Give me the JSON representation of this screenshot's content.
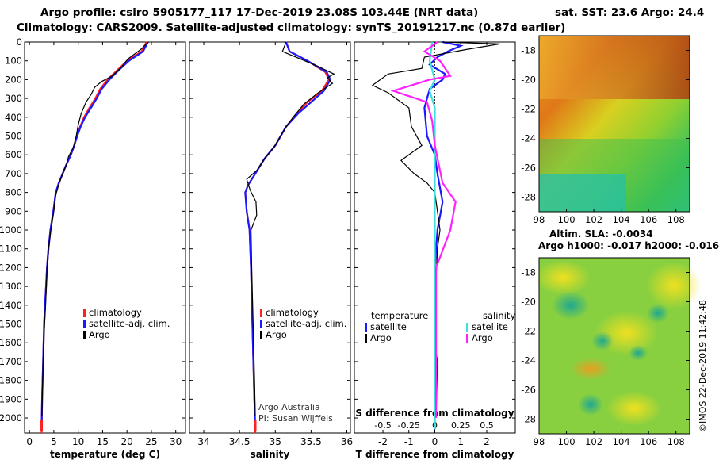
{
  "titles": {
    "line1": "Argo profile: csiro 5905177_117 17-Dec-2019 23.08S 103.44E (NRT data)",
    "line2": "Climatology: CARS2009. Satellite-adjusted climatology: synTS_20191217.nc (0.87d earlier)",
    "sst": "sat. SST: 23.6 Argo: 24.4",
    "sla1": "Altim. SLA: -0.0034",
    "sla2": "Argo h1000: -0.017 h2000: -0.016",
    "imos": "©IMOS 22-Dec-2019 11:42:48"
  },
  "colors": {
    "climatology": "#ff2020",
    "satellite": "#1a1aff",
    "argo": "#000000",
    "sat_sal": "#40e0e0",
    "argo_sal": "#ff20ff"
  },
  "depth_axis": {
    "ticks": [
      0,
      100,
      200,
      300,
      400,
      500,
      600,
      700,
      800,
      900,
      1000,
      1100,
      1200,
      1300,
      1400,
      1500,
      1600,
      1700,
      1800,
      1900,
      2000
    ],
    "range": [
      0,
      2080
    ]
  },
  "chart_data": [
    {
      "type": "line",
      "name": "temperature",
      "xlabel": "temperature (deg C)",
      "xlim": [
        -1,
        32
      ],
      "xticks": [
        0,
        5,
        10,
        15,
        20,
        25,
        30
      ],
      "legend": [
        {
          "label": "climatology",
          "color": "#ff2020"
        },
        {
          "label": "satellite-adj. clim.",
          "color": "#1a1aff"
        },
        {
          "label": "Argo",
          "color": "#000000"
        }
      ],
      "series": [
        {
          "name": "climatology",
          "color": "#ff2020",
          "points": [
            [
              24,
              0
            ],
            [
              23,
              50
            ],
            [
              20,
              100
            ],
            [
              18,
              150
            ],
            [
              16,
              200
            ],
            [
              14.5,
              250
            ],
            [
              13.5,
              300
            ],
            [
              12.3,
              350
            ],
            [
              11.2,
              400
            ],
            [
              10.4,
              450
            ],
            [
              9.7,
              500
            ],
            [
              9.2,
              550
            ],
            [
              8.5,
              600
            ],
            [
              7.6,
              650
            ],
            [
              6.8,
              700
            ],
            [
              6.0,
              750
            ],
            [
              5.4,
              800
            ],
            [
              4.9,
              900
            ],
            [
              4.3,
              1000
            ],
            [
              3.9,
              1100
            ],
            [
              3.6,
              1200
            ],
            [
              3.4,
              1300
            ],
            [
              3.2,
              1400
            ],
            [
              3.0,
              1500
            ],
            [
              2.8,
              1700
            ],
            [
              2.6,
              1900
            ],
            [
              2.5,
              2080
            ]
          ]
        },
        {
          "name": "satellite-adj. clim.",
          "color": "#1a1aff",
          "points": [
            [
              24.3,
              0
            ],
            [
              23.3,
              50
            ],
            [
              20.4,
              100
            ],
            [
              18.3,
              150
            ],
            [
              16.4,
              200
            ],
            [
              14.8,
              250
            ],
            [
              13.8,
              300
            ],
            [
              12.6,
              350
            ],
            [
              11.4,
              400
            ],
            [
              10.5,
              450
            ],
            [
              9.8,
              500
            ],
            [
              9.2,
              550
            ],
            [
              8.5,
              600
            ],
            [
              7.6,
              650
            ],
            [
              6.8,
              700
            ],
            [
              6.0,
              750
            ],
            [
              5.4,
              800
            ],
            [
              4.9,
              900
            ],
            [
              4.3,
              1000
            ],
            [
              3.9,
              1100
            ],
            [
              3.6,
              1200
            ],
            [
              3.4,
              1300
            ],
            [
              3.2,
              1400
            ],
            [
              3.0,
              1500
            ],
            [
              2.8,
              1700
            ],
            [
              2.6,
              1900
            ],
            [
              2.5,
              2060
            ]
          ]
        },
        {
          "name": "Argo",
          "color": "#000000",
          "points": [
            [
              24.4,
              0
            ],
            [
              22.8,
              40
            ],
            [
              20.2,
              90
            ],
            [
              19,
              130
            ],
            [
              17,
              180
            ],
            [
              14.8,
              210
            ],
            [
              13.4,
              240
            ],
            [
              12.6,
              280
            ],
            [
              11.6,
              320
            ],
            [
              10.6,
              380
            ],
            [
              10.0,
              440
            ],
            [
              9.6,
              500
            ],
            [
              9.0,
              560
            ],
            [
              8.0,
              610
            ],
            [
              7.6,
              650
            ],
            [
              6.8,
              700
            ],
            [
              6.0,
              760
            ],
            [
              5.3,
              820
            ],
            [
              5.0,
              900
            ],
            [
              4.4,
              1000
            ],
            [
              3.9,
              1100
            ],
            [
              3.6,
              1200
            ],
            [
              3.3,
              1400
            ],
            [
              2.9,
              1600
            ],
            [
              2.7,
              1800
            ],
            [
              2.55,
              1990
            ]
          ]
        }
      ]
    },
    {
      "type": "line",
      "name": "salinity",
      "xlabel": "salinity",
      "xlim": [
        33.8,
        36.05
      ],
      "xticks": [
        34,
        34.5,
        35,
        35.5,
        36
      ],
      "legend": [
        {
          "label": "climatology",
          "color": "#ff2020"
        },
        {
          "label": "satellite-adj. clim.",
          "color": "#1a1aff"
        },
        {
          "label": "Argo",
          "color": "#000000"
        }
      ],
      "series": [
        {
          "name": "climatology",
          "color": "#ff2020",
          "points": [
            [
              35.15,
              0
            ],
            [
              35.2,
              50
            ],
            [
              35.45,
              100
            ],
            [
              35.7,
              160
            ],
            [
              35.75,
              200
            ],
            [
              35.65,
              260
            ],
            [
              35.45,
              320
            ],
            [
              35.3,
              380
            ],
            [
              35.15,
              450
            ],
            [
              35.0,
              550
            ],
            [
              34.85,
              620
            ],
            [
              34.72,
              700
            ],
            [
              34.62,
              760
            ],
            [
              34.58,
              800
            ],
            [
              34.6,
              900
            ],
            [
              34.64,
              1000
            ],
            [
              34.66,
              1200
            ],
            [
              34.68,
              1500
            ],
            [
              34.7,
              1800
            ],
            [
              34.72,
              2080
            ]
          ]
        },
        {
          "name": "satellite-adj. clim.",
          "color": "#1a1aff",
          "points": [
            [
              35.15,
              0
            ],
            [
              35.2,
              50
            ],
            [
              35.45,
              100
            ],
            [
              35.72,
              160
            ],
            [
              35.77,
              200
            ],
            [
              35.68,
              260
            ],
            [
              35.5,
              320
            ],
            [
              35.32,
              380
            ],
            [
              35.15,
              450
            ],
            [
              35.0,
              550
            ],
            [
              34.85,
              620
            ],
            [
              34.72,
              700
            ],
            [
              34.62,
              760
            ],
            [
              34.58,
              800
            ],
            [
              34.6,
              900
            ],
            [
              34.64,
              1000
            ],
            [
              34.66,
              1200
            ],
            [
              34.68,
              1500
            ],
            [
              34.7,
              1800
            ],
            [
              34.72,
              2060
            ]
          ]
        },
        {
          "name": "Argo",
          "color": "#000000",
          "points": [
            [
              35.15,
              0
            ],
            [
              35.1,
              50
            ],
            [
              35.35,
              90
            ],
            [
              35.6,
              130
            ],
            [
              35.82,
              170
            ],
            [
              35.73,
              190
            ],
            [
              35.8,
              220
            ],
            [
              35.6,
              270
            ],
            [
              35.4,
              330
            ],
            [
              35.25,
              400
            ],
            [
              35.12,
              470
            ],
            [
              34.98,
              560
            ],
            [
              34.85,
              620
            ],
            [
              34.75,
              680
            ],
            [
              34.6,
              730
            ],
            [
              34.65,
              790
            ],
            [
              34.73,
              850
            ],
            [
              34.74,
              920
            ],
            [
              34.66,
              1000
            ],
            [
              34.67,
              1200
            ],
            [
              34.69,
              1500
            ],
            [
              34.71,
              1800
            ],
            [
              34.72,
              1990
            ]
          ]
        }
      ]
    },
    {
      "type": "line",
      "name": "difference",
      "xlabel": "T difference from climatology",
      "xlabel2": "S difference from climatology",
      "xlim": [
        -3.1,
        3.1
      ],
      "xticks": [
        -2,
        -1,
        0,
        1,
        2
      ],
      "xticks_top_labels": [
        "-0.5",
        "-0.25",
        "0",
        "0.25",
        "0.5"
      ],
      "legend": [
        {
          "label": "temperature",
          "color": ""
        },
        {
          "label": "satellite",
          "color": "#1a1aff"
        },
        {
          "label": "Argo",
          "color": "#000000"
        },
        {
          "label": "salinity",
          "color": ""
        },
        {
          "label": "satellite",
          "color": "#40e0e0"
        },
        {
          "label": "Argo",
          "color": "#ff20ff"
        }
      ],
      "series": [
        {
          "name": "T satellite",
          "color": "#1a1aff",
          "points": [
            [
              0.3,
              0
            ],
            [
              1.0,
              20
            ],
            [
              0.5,
              50
            ],
            [
              0.1,
              80
            ],
            [
              -0.2,
              120
            ],
            [
              0.4,
              170
            ],
            [
              0.3,
              200
            ],
            [
              -0.2,
              250
            ],
            [
              -0.4,
              350
            ],
            [
              -0.3,
              500
            ],
            [
              0,
              600
            ],
            [
              0.1,
              700
            ],
            [
              0.3,
              850
            ],
            [
              0.1,
              1000
            ],
            [
              0,
              1200
            ],
            [
              0,
              2060
            ]
          ]
        },
        {
          "name": "T Argo",
          "color": "#000000",
          "points": [
            [
              0.3,
              0
            ],
            [
              2.5,
              10
            ],
            [
              1.2,
              40
            ],
            [
              -0.4,
              80
            ],
            [
              -0.5,
              140
            ],
            [
              -1.8,
              170
            ],
            [
              -2.4,
              230
            ],
            [
              -1.8,
              270
            ],
            [
              -1.0,
              350
            ],
            [
              -0.9,
              450
            ],
            [
              -0.5,
              550
            ],
            [
              -1.3,
              630
            ],
            [
              -0.8,
              700
            ],
            [
              -0.3,
              750
            ],
            [
              0,
              800
            ],
            [
              0.1,
              900
            ],
            [
              0.2,
              1000
            ],
            [
              0.1,
              1100
            ],
            [
              0,
              1400
            ],
            [
              0.05,
              1500
            ],
            [
              0,
              1600
            ],
            [
              0.1,
              1700
            ],
            [
              0.05,
              2000
            ]
          ]
        },
        {
          "name": "S satellite",
          "color": "#40e0e0",
          "points": [
            [
              -0.1,
              0
            ],
            [
              -0.2,
              100
            ],
            [
              0,
              200
            ],
            [
              -0.2,
              260
            ],
            [
              0,
              350
            ],
            [
              0,
              2060
            ]
          ]
        },
        {
          "name": "S Argo",
          "color": "#ff20ff",
          "points": [
            [
              0.1,
              0
            ],
            [
              -0.4,
              50
            ],
            [
              0.2,
              100
            ],
            [
              0.6,
              180
            ],
            [
              -0.2,
              200
            ],
            [
              -1.6,
              260
            ],
            [
              -0.3,
              320
            ],
            [
              -0.1,
              420
            ],
            [
              0,
              550
            ],
            [
              0.3,
              750
            ],
            [
              0.8,
              850
            ],
            [
              0.6,
              1000
            ],
            [
              0.05,
              1200
            ],
            [
              0.05,
              2000
            ]
          ]
        }
      ]
    },
    {
      "type": "heatmap",
      "name": "sst-map",
      "xlim": [
        98,
        109
      ],
      "ylim": [
        -29,
        -17
      ],
      "xticks": [
        98,
        100,
        102,
        104,
        106,
        108
      ],
      "yticks": [
        -18,
        -20,
        -22,
        -24,
        -26,
        -28
      ]
    },
    {
      "type": "heatmap",
      "name": "sla-map",
      "xlim": [
        98,
        109
      ],
      "ylim": [
        -29,
        -17
      ],
      "xticks": [
        98,
        100,
        102,
        104,
        106,
        108
      ],
      "yticks": [
        -18,
        -20,
        -22,
        -24,
        -26,
        -28
      ]
    }
  ],
  "annotations": {
    "argo_australia": "Argo Australia",
    "pi": "PI: Susan Wijffels"
  }
}
